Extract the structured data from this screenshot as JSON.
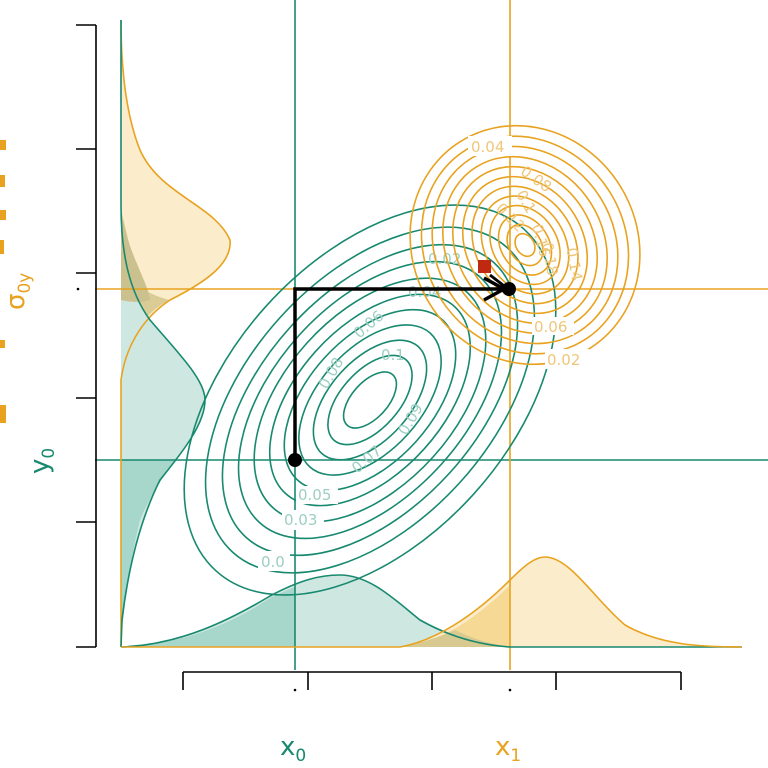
{
  "colors": {
    "green": "#17896f",
    "orange": "#e8a21f",
    "green_fill": "#cfe7e1",
    "green_fill_dark": "#a7d6ca",
    "orange_fill": "#fbeccc",
    "orange_fill_dark": "#f7d996",
    "olive_fill": "#d7c98f",
    "olive_fill2": "#c9be8a",
    "green_label": "#9ccfc2",
    "orange_label": "#efc77b",
    "arrow": "#000000",
    "point": "#000000",
    "marker": "#c0290f",
    "axis": "#000000"
  },
  "labels": {
    "x0": {
      "main": "x",
      "sub": "0"
    },
    "x1": {
      "main": "x",
      "sub": "1"
    },
    "y0": {
      "main": "y",
      "sub": "0"
    },
    "sigma0y": {
      "main": "σ",
      "sub": "0y"
    }
  },
  "green_contours": [
    "0.0",
    "0.03",
    "0.05",
    "0.07",
    "0.08",
    "0.06",
    "0.04",
    "0.02",
    "0.1",
    "0.09"
  ],
  "orange_contours": [
    "0.04",
    "0.08",
    "0.1",
    "0.12",
    "0.16",
    "0.18",
    "0.14",
    "0.06",
    "0.02"
  ],
  "chart_data": {
    "type": "diagram",
    "description_free": true,
    "distributions": [
      {
        "color": "green",
        "mean_marker": "x0, y0 path start"
      },
      {
        "color": "orange",
        "mean_marker": "x1 path end"
      }
    ]
  }
}
